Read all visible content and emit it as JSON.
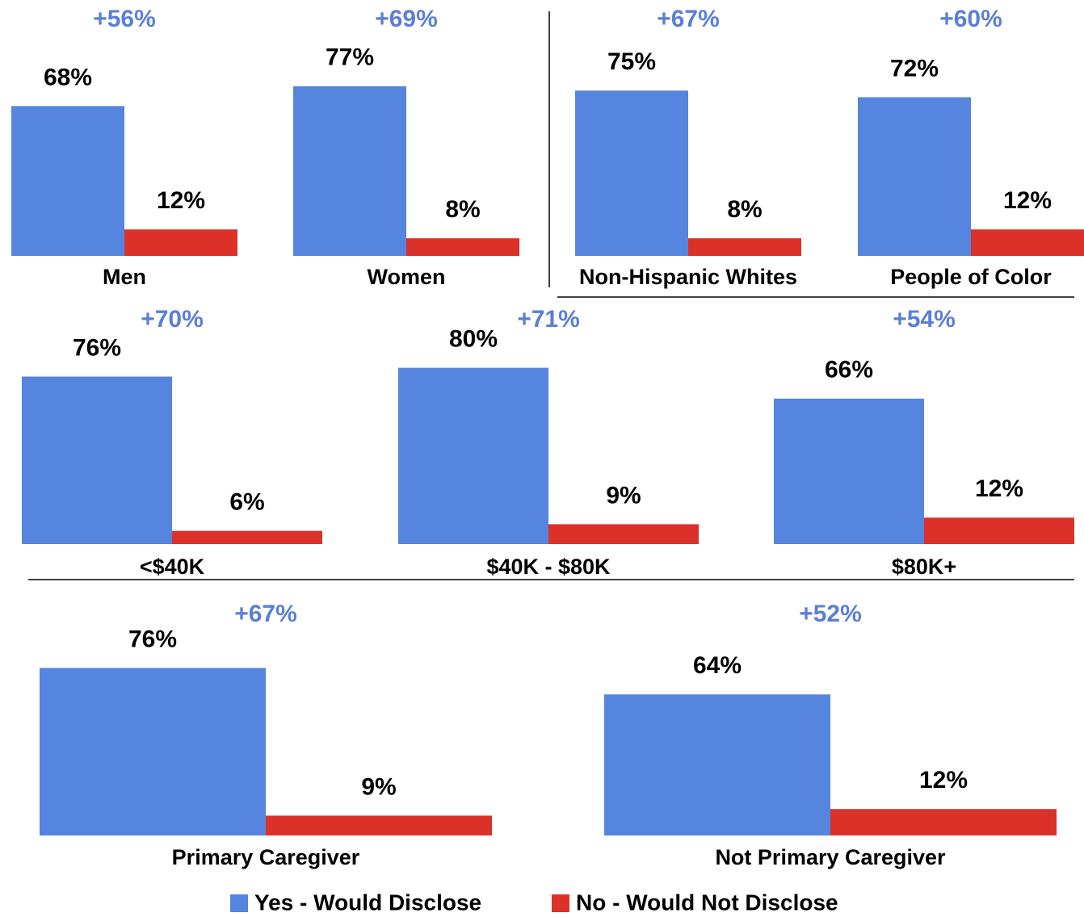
{
  "chart_data": {
    "type": "bar",
    "categories": [
      "Men",
      "Women",
      "Non-Hispanic Whites",
      "People of Color",
      "<$40K",
      "$40K - $80K",
      "$80K+",
      "Primary Caregiver",
      "Not Primary Caregiver"
    ],
    "series": [
      {
        "name": "Yes - Would Disclose",
        "color": "#5585de",
        "values": [
          68,
          77,
          75,
          72,
          76,
          80,
          66,
          76,
          64
        ],
        "value_labels": [
          "68%",
          "77%",
          "75%",
          "72%",
          "76%",
          "80%",
          "66%",
          "76%",
          "64%"
        ]
      },
      {
        "name": "No - Would Not Disclose",
        "color": "#dc3129",
        "values": [
          12,
          8,
          8,
          12,
          6,
          9,
          12,
          9,
          12
        ],
        "value_labels": [
          "12%",
          "8%",
          "8%",
          "12%",
          "6%",
          "9%",
          "12%",
          "9%",
          "12%"
        ]
      }
    ],
    "differences": [
      56,
      69,
      67,
      60,
      70,
      71,
      54,
      67,
      52
    ],
    "difference_labels": [
      "+56%",
      "+69%",
      "+67%",
      "+60%",
      "+70%",
      "+71%",
      "+54%",
      "+67%",
      "+52%"
    ]
  }
}
